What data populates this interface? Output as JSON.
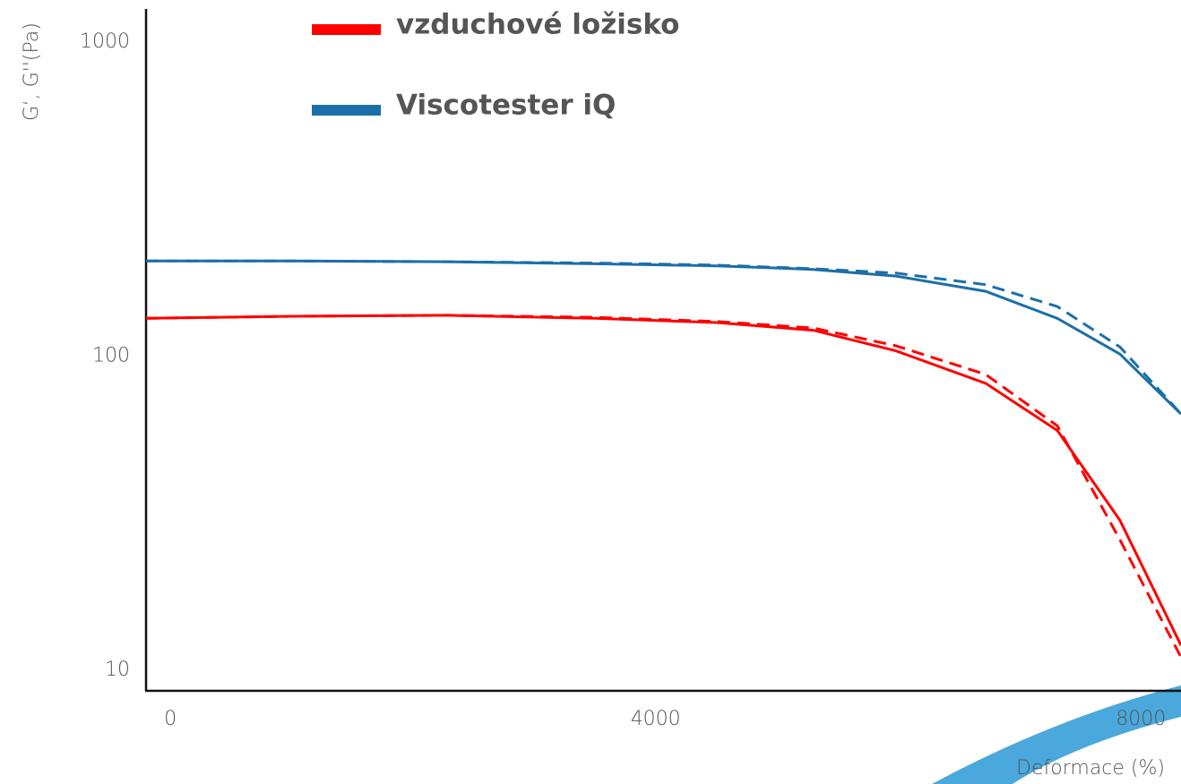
{
  "chart_data": {
    "type": "line",
    "x_label": "Deformace (%)",
    "y_label": "G‘, G''(Pa)",
    "x": [
      -200,
      1000,
      2289,
      3500,
      4504,
      5300,
      5981,
      6720,
      7311,
      7827,
      8330
    ],
    "series": [
      {
        "name": "vzduchové ložisko",
        "color": "#ff0000",
        "values": [
          132,
          134,
          135,
          132,
          128,
          121,
          104,
          82,
          58,
          30,
          12
        ],
        "dashed_values": [
          132,
          134,
          135,
          133,
          129,
          123,
          108,
          87.5,
          60,
          26,
          11
        ]
      },
      {
        "name": "Viscotester iQ",
        "color": "#1a6fa8",
        "values": [
          201,
          201,
          200,
          197,
          194,
          189,
          180,
          161,
          132,
          101.6,
          65.5
        ],
        "dashed_values": [
          201,
          201,
          200,
          198,
          195,
          190,
          184,
          169,
          144,
          107,
          65.5
        ]
      }
    ],
    "xlim": [
      -200,
      8330
    ],
    "ylim": [
      8.6,
      1276
    ],
    "xticks": [
      0,
      4000,
      8000
    ],
    "yticks": [
      10,
      100,
      1000
    ],
    "y_log": true
  }
}
